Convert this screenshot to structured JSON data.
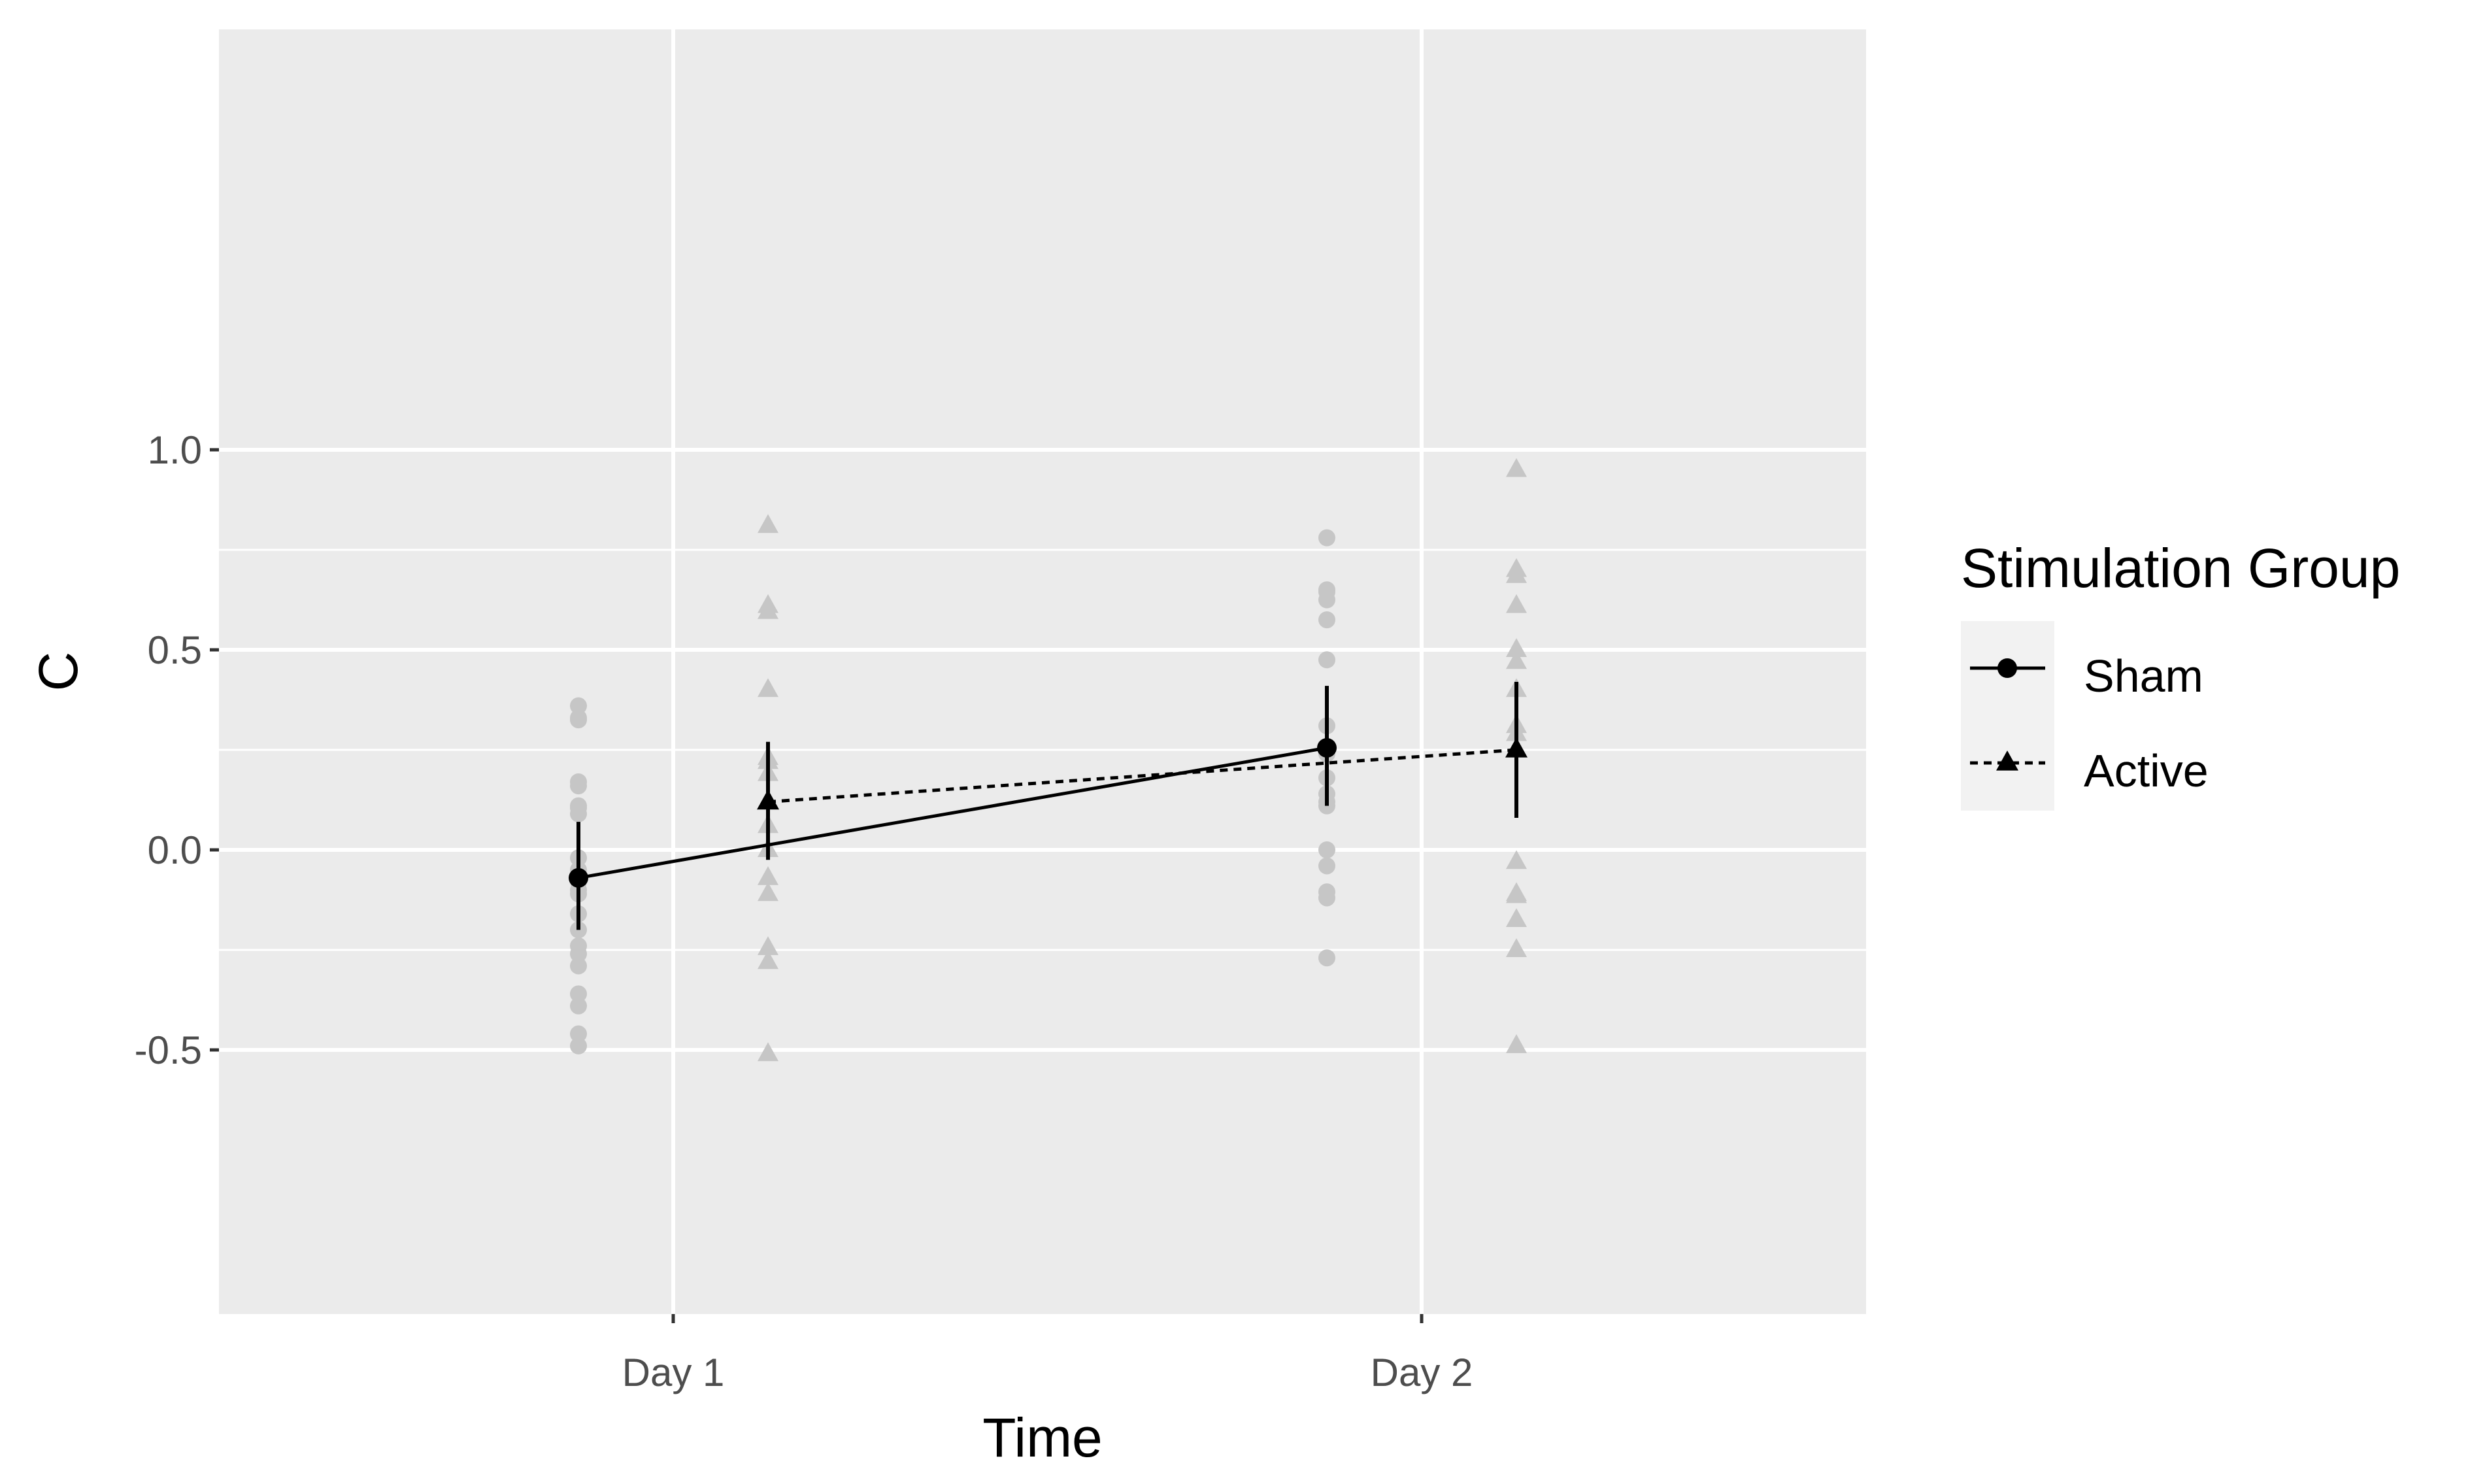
{
  "chart_data": {
    "type": "scatter",
    "xlabel": "Time",
    "ylabel": "C",
    "categories": [
      "Day 1",
      "Day 2"
    ],
    "ylim": [
      -0.58,
      1.03
    ],
    "yticks": [
      "1.0",
      "0.5",
      "0.0",
      "-0.5"
    ],
    "ytick_values": [
      1.0,
      0.5,
      0.0,
      -0.5
    ],
    "grid": true,
    "legend": {
      "title": "Stimulation Group",
      "position": "right",
      "entries": [
        "Sham",
        "Active"
      ]
    },
    "series": [
      {
        "name": "Sham",
        "marker": "circle",
        "line": "solid",
        "mean": [
          -0.07,
          0.255
        ],
        "error_low": [
          -0.2,
          0.11
        ],
        "error_high": [
          0.07,
          0.41
        ],
        "raw": [
          [
            0.36,
            0.33,
            0.325,
            0.17,
            0.16,
            0.11,
            0.105,
            0.09,
            -0.02,
            -0.05,
            -0.08,
            -0.1,
            -0.11,
            -0.16,
            -0.2,
            -0.24,
            -0.26,
            -0.29,
            -0.36,
            -0.39,
            -0.46,
            -0.49
          ],
          [
            0.78,
            0.65,
            0.645,
            0.625,
            0.575,
            0.475,
            0.31,
            0.24,
            0.18,
            0.14,
            0.12,
            0.11,
            0.0,
            -0.04,
            -0.105,
            -0.12,
            -0.27
          ]
        ]
      },
      {
        "name": "Active",
        "marker": "triangle",
        "line": "dashed",
        "mean": [
          0.12,
          0.25
        ],
        "error_low": [
          -0.025,
          0.08
        ],
        "error_high": [
          0.27,
          0.42
        ],
        "raw": [
          [
            0.81,
            0.61,
            0.595,
            0.4,
            0.23,
            0.22,
            0.19,
            0.06,
            0.0,
            -0.07,
            -0.11,
            -0.245,
            -0.28,
            -0.51
          ],
          [
            0.95,
            0.7,
            0.685,
            0.61,
            0.5,
            0.47,
            0.4,
            0.31,
            0.29,
            -0.03,
            -0.11,
            -0.115,
            -0.175,
            -0.25,
            -0.49
          ]
        ]
      }
    ],
    "colors": {
      "panel": "#ebebeb",
      "grid": "#ffffff",
      "raw_points": "#c6c6c6",
      "summary": "#000000",
      "tick_text": "#4d4d4d"
    }
  }
}
